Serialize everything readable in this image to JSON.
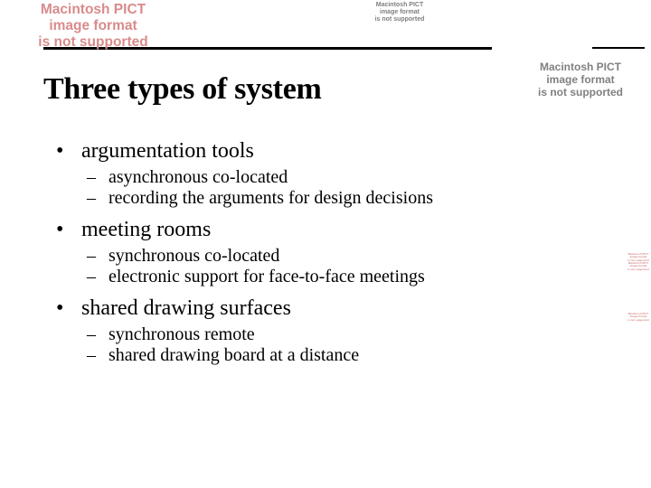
{
  "slide": {
    "title": "Three types of system",
    "title_fontsize": 34,
    "title_color": "#000000",
    "bullets": [
      {
        "label": "argumentation tools",
        "sub": [
          "asynchronous co-located",
          "recording the arguments for design decisions"
        ]
      },
      {
        "label": "meeting rooms",
        "sub": [
          "synchronous co-located",
          "electronic support for face-to-face meetings"
        ]
      },
      {
        "label": "shared drawing surfaces",
        "sub": [
          "synchronous remote",
          "shared drawing board at a distance"
        ]
      }
    ],
    "b1_fontsize": 24,
    "b2_fontsize": 20,
    "text_color": "#000000",
    "background_color": "#ffffff"
  },
  "errors": {
    "line1": "Macintosh PICT",
    "line2": "image format",
    "line3": "is not supported",
    "color_grey": "#808080",
    "color_red": "#d98b8b"
  }
}
